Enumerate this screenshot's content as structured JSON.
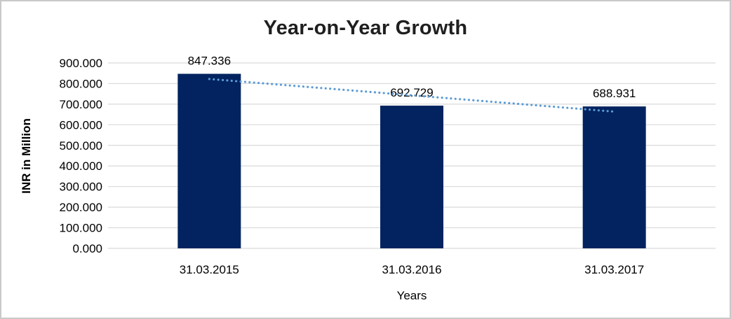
{
  "chart_data": {
    "type": "bar",
    "title": "Year-on-Year Growth",
    "xlabel": "Years",
    "ylabel": "INR in Million",
    "categories": [
      "31.03.2015",
      "31.03.2016",
      "31.03.2017"
    ],
    "values": [
      847.336,
      692.729,
      688.931
    ],
    "data_labels": [
      "847.336",
      "692.729",
      "688.931"
    ],
    "ylim": [
      0,
      900
    ],
    "ytick_step": 100,
    "ytick_labels": [
      "0.000",
      "100.000",
      "200.000",
      "300.000",
      "400.000",
      "500.000",
      "600.000",
      "700.000",
      "800.000",
      "900.000"
    ],
    "grid": true,
    "legend": "none",
    "colors": {
      "bar": "#022360",
      "trendline": "#5B9BD5",
      "gridline": "#D9D9D9",
      "title_text": "#1f1f1f",
      "axis_text": "#000000"
    },
    "trendline": {
      "style": "dotted",
      "color": "#5B9BD5",
      "fit": "linear",
      "fitted_end_values": [
        822.23,
        663.77
      ]
    }
  }
}
